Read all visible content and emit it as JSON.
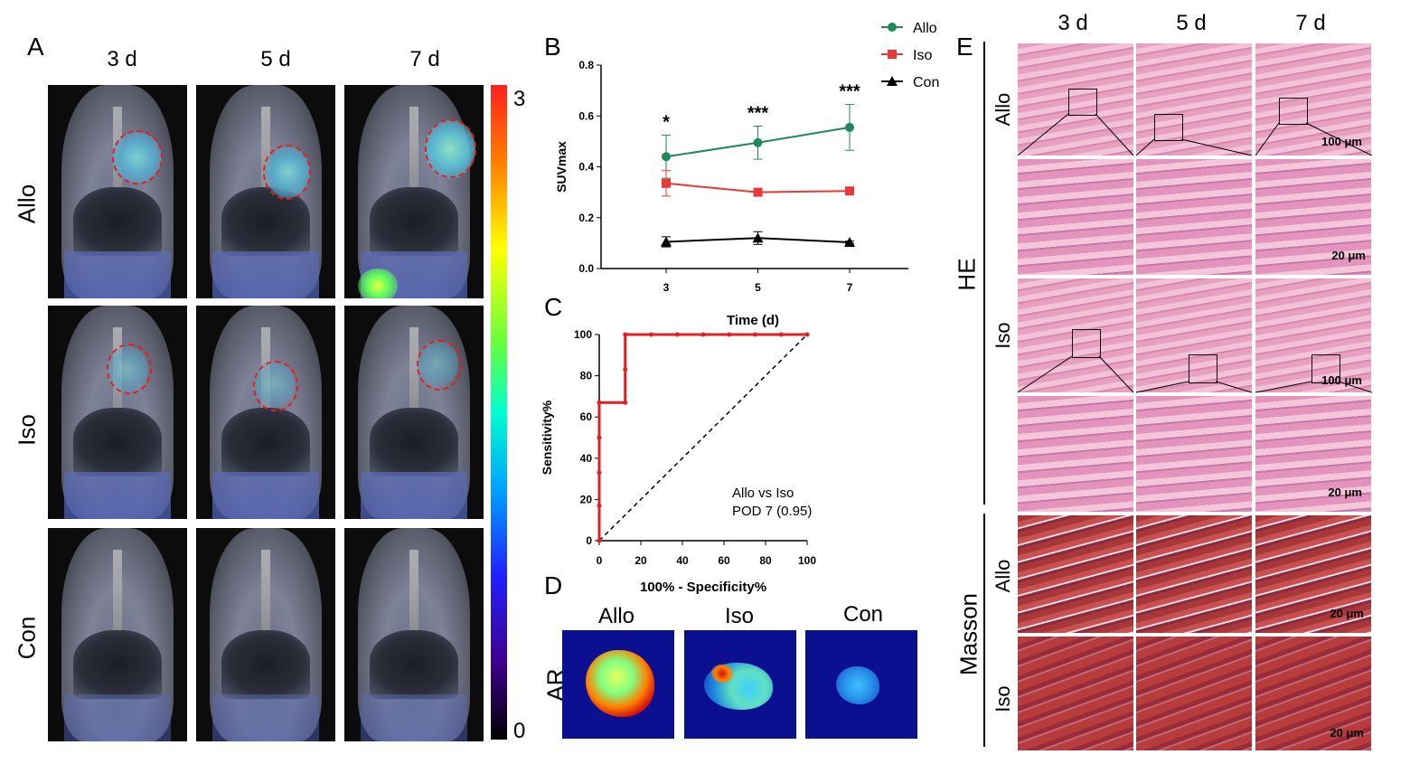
{
  "panels": {
    "A": "A",
    "B": "B",
    "C": "C",
    "D": "D",
    "E": "E"
  },
  "panelA": {
    "columns": [
      "3 d",
      "5 d",
      "7 d"
    ],
    "rows": [
      "Allo",
      "Iso",
      "Con"
    ],
    "colorbar": {
      "max": "3",
      "min": "0"
    }
  },
  "chart_data": [
    {
      "type": "line",
      "panel": "B",
      "xlabel": "Time (d)",
      "ylabel": "SUVmax",
      "x": [
        3,
        5,
        7
      ],
      "xticks": [
        "3",
        "5",
        "7"
      ],
      "yticks": [
        "0.0",
        "0.2",
        "0.4",
        "0.6",
        "0.8"
      ],
      "ylim": [
        0,
        0.8
      ],
      "series": [
        {
          "name": "Allo",
          "values": [
            0.44,
            0.495,
            0.555
          ],
          "errors": [
            0.085,
            0.065,
            0.09
          ],
          "color": "#1e8a5a",
          "marker": "circle"
        },
        {
          "name": "Iso",
          "values": [
            0.335,
            0.3,
            0.305
          ],
          "errors": [
            0.05,
            0.01,
            0.01
          ],
          "color": "#e83838",
          "marker": "square"
        },
        {
          "name": "Con",
          "values": [
            0.105,
            0.12,
            0.103
          ],
          "errors": [
            0.02,
            0.025,
            0.005
          ],
          "color": "#000000",
          "marker": "triangle"
        }
      ],
      "annotations": [
        "*",
        "***",
        "***"
      ]
    },
    {
      "type": "line",
      "panel": "C",
      "xlabel": "100% - Specificity%",
      "ylabel": "Sensitivity%",
      "xticks": [
        "0",
        "20",
        "40",
        "60",
        "80",
        "100"
      ],
      "yticks": [
        "0",
        "20",
        "40",
        "60",
        "80",
        "100"
      ],
      "xlim": [
        0,
        100
      ],
      "ylim": [
        0,
        100
      ],
      "roc": {
        "x": [
          0,
          0,
          0,
          0,
          0,
          0,
          12.5,
          12.5,
          12.5,
          25,
          37.5,
          50,
          62.5,
          75,
          87.5,
          100
        ],
        "y": [
          0,
          17,
          33,
          50,
          67,
          67,
          67,
          83,
          100,
          100,
          100,
          100,
          100,
          100,
          100,
          100
        ],
        "color": "#e02020"
      },
      "annotation_line1": "Allo vs Iso",
      "annotation_line2": "POD 7 (0.95)"
    }
  ],
  "panelD": {
    "side_label": "AR",
    "columns": [
      "Allo",
      "Iso",
      "Con"
    ]
  },
  "panelE": {
    "columns": [
      "3 d",
      "5 d",
      "7 d"
    ],
    "he_label": "HE",
    "masson_label": "Masson",
    "rows": [
      "Allo",
      "Iso",
      "Allo",
      "Iso"
    ],
    "scale_100": "100 μm",
    "scale_20": "20 μm"
  }
}
